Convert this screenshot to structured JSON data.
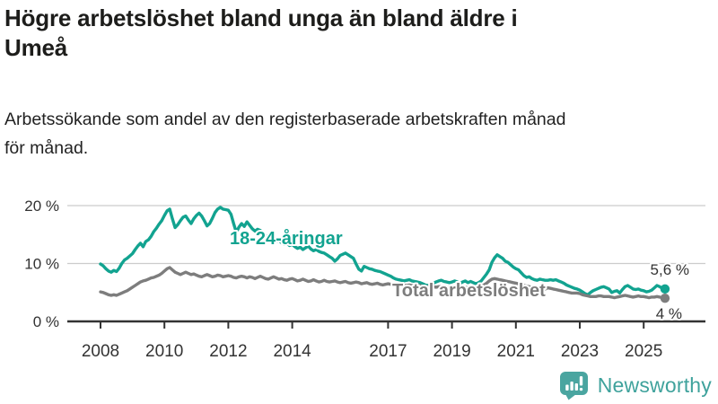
{
  "header": {
    "title_lines": [
      "Högre arbetslöshet bland unga än bland äldre i",
      "Umeå"
    ],
    "subtitle_lines": [
      "Arbetssökande som andel av den registerbaserade arbetskraften månad",
      "för månad."
    ]
  },
  "chart_data": {
    "type": "line",
    "title": "Högre arbetslöshet bland unga än bland äldre i Umeå",
    "subtitle": "Arbetssökande som andel av den registerbaserade arbetskraften månad för månad.",
    "unit": "%",
    "frequency": "monthly",
    "x_start_year": 2008,
    "x_ticks": [
      2008,
      2010,
      2012,
      2014,
      2017,
      2019,
      2021,
      2023,
      2025
    ],
    "y_ticks": [
      {
        "v": 0,
        "label": "0 %"
      },
      {
        "v": 10,
        "label": "10 %"
      },
      {
        "v": 20,
        "label": "20 %"
      }
    ],
    "ylim": [
      0,
      22
    ],
    "grid": "horizontal",
    "legend_position": "inline-labels",
    "series": [
      {
        "name": "18-24-åringar",
        "color": "#12a390",
        "end_label": "5,6 %",
        "end_value": 5.6,
        "values": [
          9.9,
          9.6,
          9.1,
          8.7,
          8.5,
          8.8,
          8.6,
          9.2,
          10.0,
          10.6,
          10.9,
          11.3,
          11.7,
          12.4,
          13.0,
          13.5,
          12.9,
          13.8,
          14.1,
          14.7,
          15.5,
          16.1,
          16.8,
          17.4,
          18.3,
          19.1,
          19.4,
          17.7,
          16.2,
          16.7,
          17.4,
          18.0,
          18.2,
          17.5,
          16.9,
          17.7,
          18.3,
          18.7,
          18.2,
          17.4,
          16.5,
          16.9,
          17.8,
          18.8,
          19.4,
          19.7,
          19.4,
          19.3,
          19.2,
          18.5,
          16.9,
          15.4,
          16.3,
          16.9,
          16.4,
          17.2,
          16.6,
          16.0,
          15.6,
          15.9,
          15.7,
          15.2,
          14.8,
          14.4,
          14.7,
          14.2,
          13.8,
          14.0,
          13.6,
          13.3,
          13.5,
          13.1,
          13.3,
          12.9,
          12.6,
          12.8,
          12.4,
          12.7,
          13.0,
          12.5,
          12.2,
          12.4,
          12.1,
          11.9,
          11.8,
          11.5,
          11.2,
          10.9,
          10.4,
          10.8,
          11.4,
          11.6,
          11.8,
          11.5,
          11.2,
          10.9,
          9.9,
          9.0,
          8.7,
          9.5,
          9.3,
          9.1,
          9.0,
          8.8,
          8.7,
          8.6,
          8.4,
          8.2,
          8.0,
          7.8,
          7.5,
          7.3,
          7.2,
          7.1,
          7.0,
          7.1,
          7.2,
          7.0,
          6.9,
          6.8,
          6.7,
          6.5,
          6.3,
          6.2,
          6.4,
          6.6,
          6.8,
          7.0,
          7.1,
          6.9,
          6.8,
          6.7,
          6.8,
          7.0,
          6.8,
          6.6,
          6.8,
          7.0,
          6.7,
          6.9,
          6.7,
          6.5,
          6.7,
          7.0,
          7.6,
          8.2,
          8.9,
          10.2,
          11.0,
          11.5,
          11.2,
          10.9,
          10.4,
          10.2,
          9.8,
          9.4,
          9.1,
          8.9,
          8.4,
          7.9,
          7.6,
          7.7,
          7.4,
          7.2,
          7.1,
          7.3,
          7.2,
          7.1,
          7.1,
          7.2,
          7.1,
          7.2,
          7.0,
          6.8,
          6.6,
          6.3,
          6.1,
          5.9,
          5.7,
          5.6,
          5.4,
          5.1,
          4.8,
          4.6,
          5.0,
          5.3,
          5.5,
          5.7,
          5.9,
          6.0,
          5.8,
          5.6,
          5.0,
          5.2,
          5.3,
          4.9,
          5.5,
          6.0,
          6.2,
          5.9,
          5.6,
          5.5,
          5.6,
          5.4,
          5.3,
          5.1,
          5.2,
          5.4,
          5.8,
          6.2,
          6.0,
          5.7,
          5.6
        ]
      },
      {
        "name": "Total arbetslöshet",
        "color": "#7d7d7d",
        "end_label": "4 %",
        "end_value": 4.0,
        "values": [
          5.1,
          5.0,
          4.8,
          4.6,
          4.5,
          4.6,
          4.5,
          4.7,
          4.9,
          5.1,
          5.3,
          5.6,
          5.9,
          6.2,
          6.5,
          6.8,
          7.0,
          7.1,
          7.3,
          7.5,
          7.6,
          7.8,
          8.0,
          8.3,
          8.7,
          9.1,
          9.3,
          8.9,
          8.5,
          8.3,
          8.1,
          8.3,
          8.5,
          8.3,
          8.1,
          8.2,
          8.0,
          7.8,
          7.7,
          7.9,
          8.1,
          7.9,
          7.7,
          7.8,
          8.0,
          7.9,
          7.7,
          7.8,
          7.9,
          7.8,
          7.6,
          7.5,
          7.7,
          7.8,
          7.7,
          7.5,
          7.7,
          7.6,
          7.4,
          7.6,
          7.8,
          7.6,
          7.4,
          7.3,
          7.5,
          7.7,
          7.5,
          7.3,
          7.4,
          7.2,
          7.1,
          7.3,
          7.4,
          7.2,
          7.0,
          7.1,
          7.3,
          7.1,
          6.9,
          7.0,
          7.2,
          7.0,
          6.8,
          6.9,
          7.1,
          6.9,
          6.8,
          6.9,
          7.0,
          6.8,
          6.7,
          6.8,
          6.9,
          6.7,
          6.6,
          6.7,
          6.8,
          6.7,
          6.5,
          6.6,
          6.7,
          6.5,
          6.4,
          6.5,
          6.6,
          6.4,
          6.3,
          6.4,
          6.5,
          6.4,
          6.3,
          6.4,
          6.4,
          6.3,
          6.2,
          6.2,
          6.3,
          6.2,
          6.1,
          6.2,
          6.2,
          6.1,
          6.0,
          6.0,
          6.1,
          6.0,
          5.9,
          6.0,
          6.0,
          5.9,
          5.8,
          5.9,
          6.0,
          5.9,
          5.8,
          5.9,
          6.0,
          5.9,
          5.8,
          5.9,
          5.9,
          5.8,
          5.9,
          6.0,
          6.3,
          6.6,
          7.0,
          7.3,
          7.4,
          7.3,
          7.2,
          7.1,
          7.0,
          6.9,
          6.8,
          6.7,
          6.6,
          6.5,
          6.3,
          6.2,
          6.1,
          6.0,
          5.9,
          5.8,
          5.7,
          5.7,
          5.6,
          5.6,
          5.8,
          5.7,
          5.6,
          5.5,
          5.4,
          5.3,
          5.2,
          5.1,
          5.0,
          4.9,
          4.9,
          4.9,
          4.8,
          4.6,
          4.5,
          4.4,
          4.3,
          4.3,
          4.3,
          4.4,
          4.4,
          4.3,
          4.3,
          4.3,
          4.2,
          4.1,
          4.2,
          4.3,
          4.4,
          4.5,
          4.4,
          4.3,
          4.2,
          4.3,
          4.4,
          4.3,
          4.3,
          4.2,
          4.1,
          4.2,
          4.2,
          4.3,
          4.2,
          4.1,
          4.0
        ]
      }
    ]
  },
  "footer": {
    "brand": "Newsworthy",
    "brand_color": "#3fa29c",
    "icon": "newsworthy-bars-logo"
  },
  "colors": {
    "accent_teal": "#12a390",
    "series_gray": "#7d7d7d",
    "axis": "#333333",
    "grid": "#cccccc",
    "background": "#ffffff",
    "text": "#1d1d1b"
  }
}
